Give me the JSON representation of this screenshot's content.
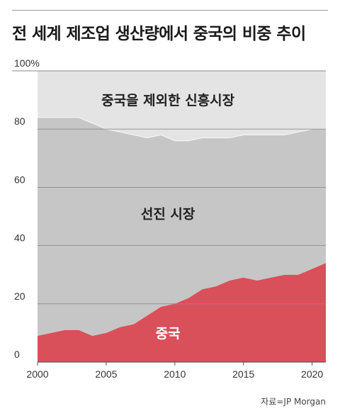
{
  "title": "전 세계 제조업 생산량에서 중국의 비중 추이",
  "source": "자료=JP Morgan",
  "chart_data": {
    "type": "area",
    "stacked": true,
    "x": [
      2000,
      2001,
      2002,
      2003,
      2004,
      2005,
      2006,
      2007,
      2008,
      2009,
      2010,
      2011,
      2012,
      2013,
      2014,
      2015,
      2016,
      2017,
      2018,
      2019,
      2020,
      2021
    ],
    "series": [
      {
        "name": "중국",
        "color": "#d9505a",
        "values": [
          9,
          10,
          11,
          11,
          9,
          10,
          12,
          13,
          16,
          19,
          20,
          22,
          25,
          26,
          28,
          29,
          28,
          29,
          30,
          30,
          32,
          34
        ]
      },
      {
        "name": "선진 시장",
        "color": "#c6c6c6",
        "values": [
          75,
          74,
          73,
          73,
          73,
          70,
          67,
          65,
          61,
          59,
          56,
          54,
          52,
          51,
          49,
          49,
          50,
          49,
          48,
          49,
          48,
          46
        ]
      },
      {
        "name": "중국을 제외한 신흥시장",
        "color": "#e4e4e4",
        "values": [
          16,
          16,
          16,
          16,
          18,
          20,
          21,
          22,
          23,
          22,
          24,
          24,
          23,
          23,
          23,
          22,
          22,
          22,
          22,
          21,
          20,
          20
        ]
      }
    ],
    "xticks": [
      2000,
      2005,
      2010,
      2015,
      2020
    ],
    "yticks": [
      0,
      20,
      40,
      60,
      80
    ],
    "ytick_top_label": "100%",
    "xlim": [
      2000,
      2021
    ],
    "ylim": [
      0,
      100
    ],
    "grid": true,
    "label_positions": [
      {
        "series": 0,
        "x": 2009.5,
        "y": 10
      },
      {
        "series": 1,
        "x": 2009.5,
        "y": 51
      },
      {
        "series": 2,
        "x": 2009.5,
        "y": 90
      }
    ]
  }
}
